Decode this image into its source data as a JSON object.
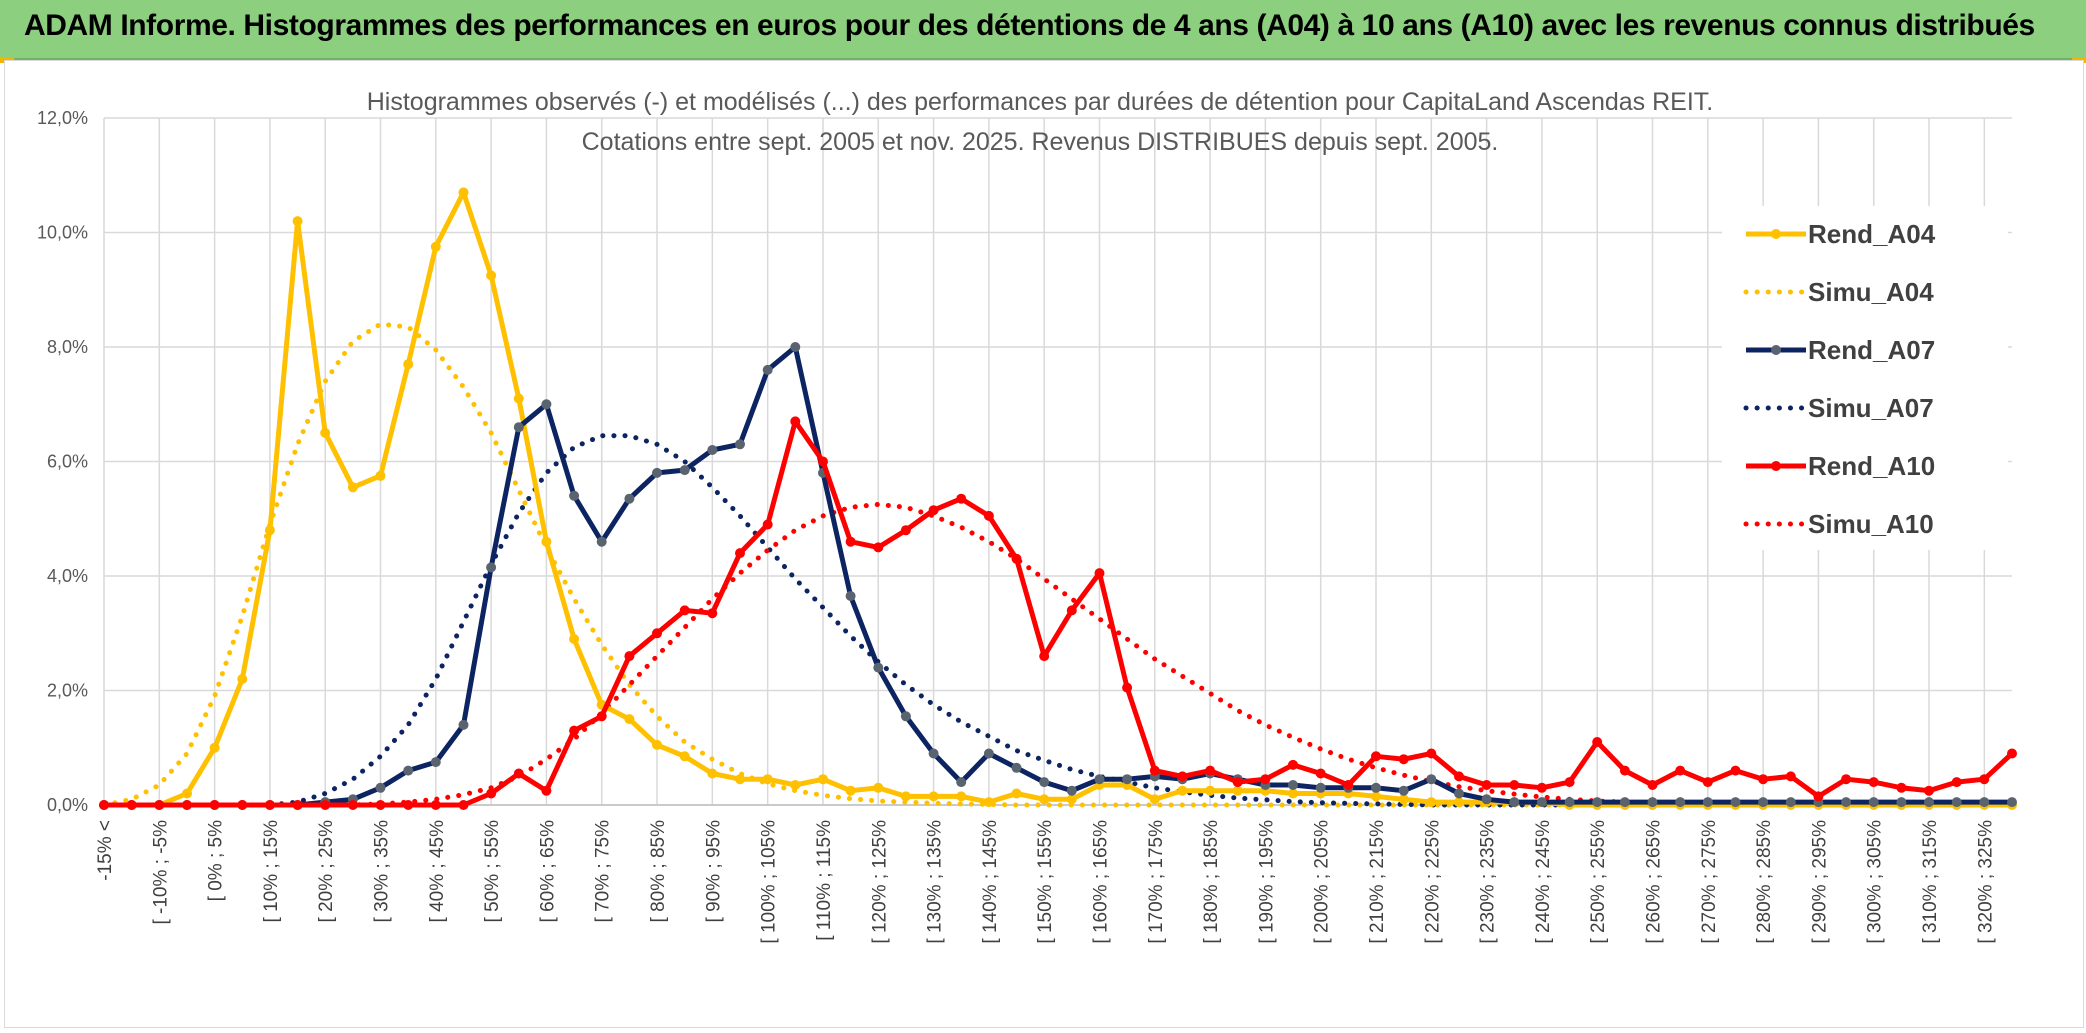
{
  "header": {
    "title": "ADAM Informe. Histogrammes des performances en euros pour des détentions de 4 ans (A04) à 10 ans (A10) avec les revenus connus distribués"
  },
  "colors": {
    "banner": "#8ccf7e",
    "a04": "#ffc000",
    "a07": "#0c2461",
    "a10": "#ff0000",
    "grid": "#d9d9d9"
  },
  "chart_data": {
    "type": "line",
    "title_line1": "Histogrammes observés (-) et modélisés (...) des performances par durées de détention pour CapitaLand Ascendas REIT.",
    "title_line2": "Cotations entre sept. 2005 et nov. 2025. Revenus DISTRIBUES depuis sept. 2005.",
    "ylim": [
      0,
      12
    ],
    "y_ticks": [
      "0,0%",
      "2,0%",
      "4,0%",
      "6,0%",
      "8,0%",
      "10,0%",
      "12,0%"
    ],
    "x_labels": [
      "-15% <",
      "[ -10% ; -5%",
      "[ 0% ; 5%",
      "[ 10% ; 15%",
      "[ 20% ; 25%",
      "[ 30% ; 35%",
      "[ 40% ; 45%",
      "[ 50% ; 55%",
      "[ 60% ; 65%",
      "[ 70% ; 75%",
      "[ 80% ; 85%",
      "[ 90% ; 95%",
      "[ 100% ; 105%",
      "[ 110% ; 115%",
      "[ 120% ; 125%",
      "[ 130% ; 135%",
      "[ 140% ; 145%",
      "[ 150% ; 155%",
      "[ 160% ; 165%",
      "[ 170% ; 175%",
      "[ 180% ; 185%",
      "[ 190% ; 195%",
      "[ 200% ; 205%",
      "[ 210% ; 215%",
      "[ 220% ; 225%",
      "[ 230% ; 235%",
      "[ 240% ; 245%",
      "[ 250% ; 255%",
      "[ 260% ; 265%",
      "[ 270% ; 275%",
      "[ 280% ; 285%",
      "[ 290% ; 295%",
      "[ 300% ; 305%",
      "[ 310% ; 315%",
      "[ 320% ; 325%"
    ],
    "legend_placement": "right",
    "series": [
      {
        "name": "Rend_A04",
        "style": "solid-marker",
        "color": "#ffc000",
        "values": [
          0.0,
          0.0,
          0.0,
          0.2,
          1.0,
          2.2,
          4.8,
          10.2,
          6.5,
          5.55,
          5.75,
          7.7,
          9.75,
          10.7,
          9.25,
          7.1,
          4.6,
          2.9,
          1.75,
          1.5,
          1.05,
          0.85,
          0.55,
          0.45,
          0.45,
          0.35,
          0.45,
          0.25,
          0.3,
          0.15,
          0.15,
          0.15,
          0.05,
          0.2,
          0.1,
          0.1,
          0.35,
          0.35,
          0.1,
          0.25,
          0.25,
          0.25,
          0.25,
          0.2,
          0.2,
          0.2,
          0.15,
          0.1,
          0.05,
          0.05,
          0.05,
          0.05,
          0.05,
          0.0,
          0.0,
          0.0,
          0.0,
          0.0,
          0.0,
          0.0,
          0.0,
          0.0,
          0.0,
          0.0,
          0.0,
          0.0,
          0.0,
          0.0,
          0.0,
          0.0
        ]
      },
      {
        "name": "Simu_A04",
        "style": "dotted",
        "color": "#ffc000",
        "values": [
          0.0,
          0.1,
          0.35,
          0.9,
          1.9,
          3.3,
          4.9,
          6.3,
          7.4,
          8.1,
          8.4,
          8.35,
          7.95,
          7.3,
          6.5,
          5.5,
          4.5,
          3.6,
          2.8,
          2.1,
          1.55,
          1.1,
          0.8,
          0.55,
          0.37,
          0.25,
          0.17,
          0.11,
          0.07,
          0.05,
          0.03,
          0.02,
          0.01,
          0.0,
          0.0,
          0.0,
          0.0,
          0.0,
          0.0,
          0.0,
          0.0,
          0.0,
          0.0,
          0.0,
          0.0,
          0.0,
          0.0,
          0.0,
          0.0,
          0.0,
          0.0,
          0.0,
          0.0,
          0.0,
          0.0,
          0.0,
          0.0,
          0.0,
          0.0,
          0.0,
          0.0,
          0.0,
          0.0,
          0.0,
          0.0,
          0.0,
          0.0,
          0.0,
          0.0,
          0.0
        ]
      },
      {
        "name": "Rend_A07",
        "style": "solid-marker",
        "color": "#0c2461",
        "values": [
          0.0,
          0.0,
          0.0,
          0.0,
          0.0,
          0.0,
          0.0,
          0.0,
          0.05,
          0.1,
          0.3,
          0.6,
          0.75,
          1.4,
          4.15,
          6.6,
          7.0,
          5.4,
          4.6,
          5.35,
          5.8,
          5.85,
          6.2,
          6.3,
          7.6,
          8.0,
          5.8,
          3.65,
          2.4,
          1.55,
          0.9,
          0.4,
          0.9,
          0.65,
          0.4,
          0.25,
          0.45,
          0.45,
          0.5,
          0.45,
          0.55,
          0.45,
          0.35,
          0.35,
          0.3,
          0.3,
          0.3,
          0.25,
          0.45,
          0.2,
          0.1,
          0.05,
          0.05,
          0.05,
          0.05,
          0.05,
          0.05,
          0.05,
          0.05,
          0.05,
          0.05,
          0.05,
          0.05,
          0.05,
          0.05,
          0.05,
          0.05,
          0.05,
          0.05,
          0.05
        ]
      },
      {
        "name": "Simu_A07",
        "style": "dotted",
        "color": "#0c2461",
        "values": [
          0.0,
          0.0,
          0.0,
          0.0,
          0.0,
          0.0,
          0.0,
          0.05,
          0.2,
          0.45,
          0.85,
          1.4,
          2.2,
          3.2,
          4.2,
          5.1,
          5.8,
          6.25,
          6.45,
          6.45,
          6.3,
          6.0,
          5.55,
          5.05,
          4.5,
          3.95,
          3.45,
          2.95,
          2.5,
          2.1,
          1.75,
          1.45,
          1.2,
          0.95,
          0.78,
          0.62,
          0.5,
          0.4,
          0.3,
          0.23,
          0.17,
          0.12,
          0.09,
          0.06,
          0.04,
          0.03,
          0.02,
          0.01,
          0.0,
          0.0,
          0.0,
          0.0,
          0.0,
          0.0,
          0.0,
          0.0,
          0.0,
          0.0,
          0.0,
          0.0,
          0.0,
          0.0,
          0.0,
          0.0,
          0.0,
          0.0,
          0.0,
          0.0,
          0.0,
          0.0
        ]
      },
      {
        "name": "Rend_A10",
        "style": "solid-marker",
        "color": "#ff0000",
        "values": [
          0.0,
          0.0,
          0.0,
          0.0,
          0.0,
          0.0,
          0.0,
          0.0,
          0.0,
          0.0,
          0.0,
          0.0,
          0.0,
          0.0,
          0.2,
          0.55,
          0.25,
          1.3,
          1.55,
          2.6,
          3.0,
          3.4,
          3.35,
          4.4,
          4.9,
          6.7,
          6.0,
          4.6,
          4.5,
          4.8,
          5.15,
          5.35,
          5.05,
          4.3,
          2.6,
          3.4,
          4.05,
          2.05,
          0.6,
          0.5,
          0.6,
          0.4,
          0.45,
          0.7,
          0.55,
          0.35,
          0.85,
          0.8,
          0.9,
          0.5,
          0.35,
          0.35,
          0.3,
          0.4,
          1.1,
          0.6,
          0.35,
          0.6,
          0.4,
          0.6,
          0.45,
          0.5,
          0.15,
          0.45,
          0.4,
          0.3,
          0.25,
          0.4,
          0.45,
          0.9
        ]
      },
      {
        "name": "Simu_A10",
        "style": "dotted",
        "color": "#ff0000",
        "values": [
          0.0,
          0.0,
          0.0,
          0.0,
          0.0,
          0.0,
          0.0,
          0.0,
          0.0,
          0.0,
          0.02,
          0.05,
          0.1,
          0.18,
          0.3,
          0.5,
          0.8,
          1.15,
          1.6,
          2.1,
          2.6,
          3.1,
          3.6,
          4.05,
          4.45,
          4.8,
          5.05,
          5.2,
          5.25,
          5.2,
          5.05,
          4.85,
          4.6,
          4.3,
          3.95,
          3.6,
          3.25,
          2.9,
          2.55,
          2.25,
          1.95,
          1.65,
          1.4,
          1.18,
          0.98,
          0.8,
          0.65,
          0.52,
          0.41,
          0.32,
          0.25,
          0.19,
          0.14,
          0.1,
          0.07,
          0.05,
          0.03,
          0.02,
          0.01,
          0.0,
          0.0,
          0.0,
          0.0,
          0.0,
          0.0,
          0.0,
          0.0,
          0.0,
          0.0,
          0.0
        ]
      }
    ]
  }
}
